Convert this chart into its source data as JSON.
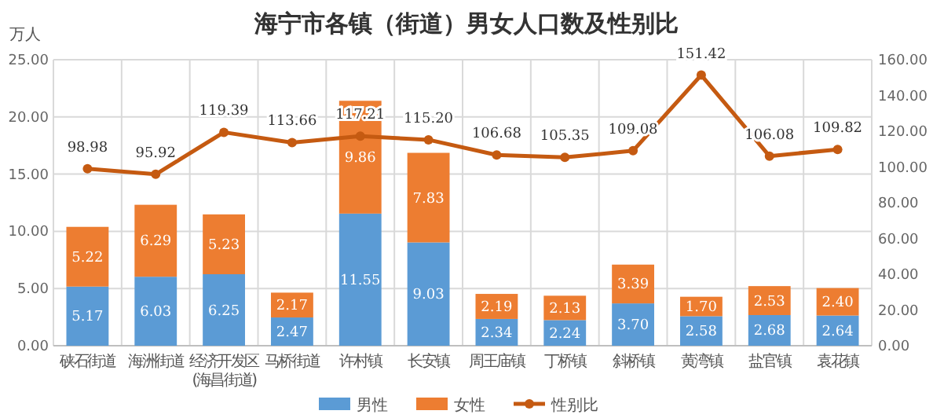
{
  "chart_data": {
    "type": "bar",
    "title": "海宁市各镇（街道）男女人口数及性别比",
    "ylabel": "万人",
    "categories": [
      "硖石街道",
      "海洲街道",
      "经济开发区\n(海昌街道)",
      "马桥街道",
      "许村镇",
      "长安镇",
      "周王庙镇",
      "丁桥镇",
      "斜桥镇",
      "黄湾镇",
      "盐官镇",
      "袁花镇"
    ],
    "series": [
      {
        "name": "男性",
        "color": "#5b9bd5",
        "values": [
          5.17,
          6.03,
          6.25,
          2.47,
          11.55,
          9.03,
          2.34,
          2.24,
          3.7,
          2.58,
          2.68,
          2.64
        ],
        "value_labels": [
          "5.17",
          "6.03",
          "6.25",
          "2.47",
          "11.55",
          "9.03",
          "2.34",
          "2.24",
          "3.70",
          "2.58",
          "2.68",
          "2.64"
        ]
      },
      {
        "name": "女性",
        "color": "#ed7d31",
        "values": [
          5.22,
          6.29,
          5.23,
          2.17,
          9.86,
          7.83,
          2.19,
          2.13,
          3.39,
          1.7,
          2.53,
          2.4
        ],
        "value_labels": [
          "5.22",
          "6.29",
          "5.23",
          "2.17",
          "9.86",
          "7.83",
          "2.19",
          "2.13",
          "3.39",
          "1.70",
          "2.53",
          "2.40"
        ]
      },
      {
        "name": "性别比",
        "type": "line",
        "axis": "y2",
        "color": "#c55a11",
        "marker": "circle",
        "values": [
          98.98,
          95.92,
          119.39,
          113.66,
          117.21,
          115.2,
          106.68,
          105.35,
          109.08,
          151.42,
          106.08,
          109.82
        ],
        "value_labels": [
          "98.98",
          "95.92",
          "119.39",
          "113.66",
          "117.21",
          "115.20",
          "106.68",
          "105.35",
          "109.08",
          "151.42",
          "106.08",
          "109.82"
        ]
      }
    ],
    "stacked": true,
    "grid": true,
    "legend": "bottom",
    "ylim": [
      0,
      25
    ],
    "yticks": [
      {
        "value": 0,
        "label": "0.00"
      },
      {
        "value": 5,
        "label": "5.00"
      },
      {
        "value": 10,
        "label": "10.00"
      },
      {
        "value": 15,
        "label": "15.00"
      },
      {
        "value": 20,
        "label": "20.00"
      },
      {
        "value": 25,
        "label": "25.00"
      }
    ],
    "y2lim": [
      0,
      160
    ],
    "y2ticks": [
      {
        "value": 0,
        "label": "0.00"
      },
      {
        "value": 20,
        "label": "20.00"
      },
      {
        "value": 40,
        "label": "40.00"
      },
      {
        "value": 60,
        "label": "60.00"
      },
      {
        "value": 80,
        "label": "80.00"
      },
      {
        "value": 100,
        "label": "100.00"
      },
      {
        "value": 120,
        "label": "120.00"
      },
      {
        "value": 140,
        "label": "140.00"
      },
      {
        "value": 160,
        "label": "160.00"
      }
    ]
  }
}
